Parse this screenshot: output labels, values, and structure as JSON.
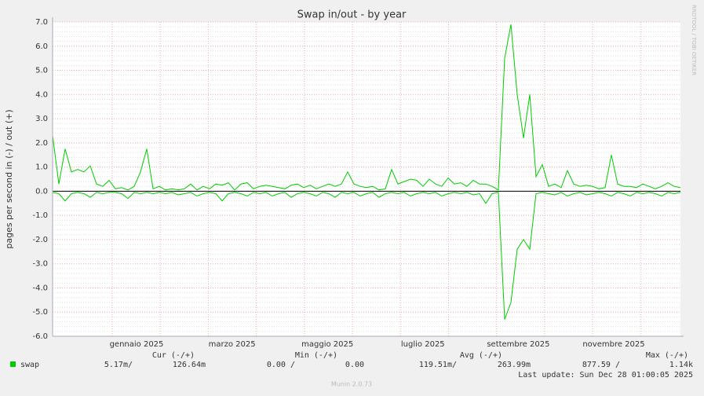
{
  "chart_data": {
    "type": "line",
    "title": "Swap in/out - by year",
    "ylabel": "pages per second in (-) / out (+)",
    "side_note": "RRDTOOL / TOBI OETIKER",
    "footer": "Munin 2.0.73",
    "xticks": [
      "gennaio 2025",
      "marzo 2025",
      "maggio 2025",
      "luglio 2025",
      "settembre 2025",
      "novembre 2025"
    ],
    "ylim": [
      -6,
      7
    ],
    "yticks": [
      {
        "value": -6,
        "label": "-6.0"
      },
      {
        "value": -5,
        "label": "-5.0"
      },
      {
        "value": -4,
        "label": "-4.0"
      },
      {
        "value": -3,
        "label": "-3.0"
      },
      {
        "value": -2,
        "label": "-2.0"
      },
      {
        "value": -1,
        "label": "-1.0"
      },
      {
        "value": 0,
        "label": "0.0"
      },
      {
        "value": 1,
        "label": "1.0"
      },
      {
        "value": 2,
        "label": "2.0"
      },
      {
        "value": 3,
        "label": "3.0"
      },
      {
        "value": 4,
        "label": "4.0"
      },
      {
        "value": 5,
        "label": "5.0"
      },
      {
        "value": 6,
        "label": "6.0"
      },
      {
        "value": 7,
        "label": "7.0"
      }
    ],
    "grid": true,
    "series": [
      {
        "name": "swap",
        "color": "#00cc00",
        "values": [
          2.3,
          0.3,
          1.75,
          0.8,
          0.9,
          0.8,
          1.05,
          0.3,
          0.2,
          0.45,
          0.1,
          0.15,
          0.05,
          0.2,
          0.8,
          1.75,
          0.1,
          0.2,
          0.05,
          0.1,
          0.05,
          0.1,
          0.3,
          0.05,
          0.2,
          0.1,
          0.3,
          0.25,
          0.35,
          0.05,
          0.3,
          0.35,
          0.1,
          0.2,
          0.25,
          0.2,
          0.15,
          0.1,
          0.25,
          0.3,
          0.15,
          0.25,
          0.1,
          0.2,
          0.3,
          0.2,
          0.3,
          0.8,
          0.3,
          0.2,
          0.15,
          0.2,
          0.05,
          0.1,
          0.9,
          0.3,
          0.4,
          0.5,
          0.45,
          0.2,
          0.5,
          0.3,
          0.2,
          0.55,
          0.3,
          0.35,
          0.2,
          0.45,
          0.3,
          0.3,
          0.2,
          0.05,
          5.5,
          6.9,
          4.0,
          2.2,
          4.0,
          0.6,
          1.1,
          0.2,
          0.3,
          0.15,
          0.85,
          0.3,
          0.2,
          0.25,
          0.2,
          0.1,
          0.15,
          1.5,
          0.3,
          0.2,
          0.2,
          0.15,
          0.3,
          0.2,
          0.1,
          0.2,
          0.35,
          0.2,
          0.15
        ],
        "values_in": [
          -0.05,
          -0.1,
          -0.4,
          -0.1,
          -0.05,
          -0.1,
          -0.25,
          -0.05,
          -0.1,
          -0.05,
          -0.05,
          -0.1,
          -0.3,
          -0.05,
          -0.1,
          -0.05,
          -0.1,
          -0.05,
          -0.1,
          -0.05,
          -0.15,
          -0.1,
          -0.05,
          -0.2,
          -0.1,
          -0.05,
          -0.1,
          -0.4,
          -0.1,
          -0.05,
          -0.1,
          -0.2,
          -0.05,
          -0.1,
          -0.05,
          -0.2,
          -0.1,
          -0.05,
          -0.25,
          -0.1,
          -0.05,
          -0.1,
          -0.2,
          -0.05,
          -0.1,
          -0.25,
          -0.05,
          -0.1,
          -0.05,
          -0.2,
          -0.1,
          -0.05,
          -0.25,
          -0.1,
          -0.05,
          -0.1,
          -0.05,
          -0.2,
          -0.1,
          -0.05,
          -0.1,
          -0.05,
          -0.2,
          -0.1,
          -0.05,
          -0.1,
          -0.05,
          -0.15,
          -0.1,
          -0.5,
          -0.1,
          -0.05,
          -5.3,
          -4.6,
          -2.4,
          -2.0,
          -2.4,
          -0.1,
          -0.05,
          -0.1,
          -0.15,
          -0.05,
          -0.2,
          -0.1,
          -0.05,
          -0.15,
          -0.1,
          -0.05,
          -0.1,
          -0.2,
          -0.05,
          -0.1,
          -0.2,
          -0.05,
          -0.1,
          -0.05,
          -0.1,
          -0.2,
          -0.05,
          -0.1,
          -0.05
        ]
      }
    ],
    "summary": {
      "headers": [
        "Cur (-/+)",
        "Min (-/+)",
        "Avg (-/+)",
        "Max (-/+)"
      ],
      "row_name": "swap",
      "cells": [
        "5.17m/",
        "126.64m",
        "0.00 /",
        "0.00",
        "119.51m/",
        "263.99m",
        "877.59 /",
        "1.14k"
      ],
      "last_update": "Last update: Sun Dec 28 01:00:05 2025"
    }
  }
}
